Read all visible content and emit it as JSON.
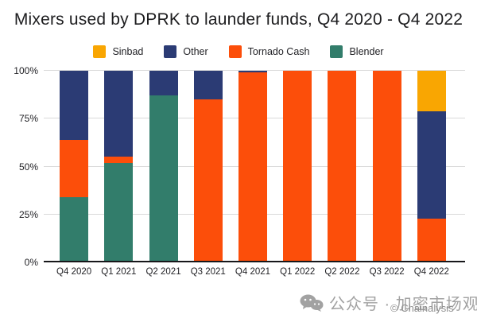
{
  "title": "Mixers used by DPRK to launder funds, Q4 2020 - Q4 2022",
  "watermark": {
    "wechat_label": "公众号 · 加密市场观察",
    "copyright": "© Chainalysis"
  },
  "colors": {
    "sinbad": "#F9A602",
    "other": "#2B3B74",
    "tornado_cash": "#FC4E0A",
    "blender": "#327D6B",
    "gridline": "#d9d9d9",
    "baseline": "#17171a",
    "watermark_gray": "#a2a2a2"
  },
  "chart_data": {
    "type": "bar",
    "subtype": "stacked_percent",
    "title": "Mixers used by DPRK to launder funds, Q4 2020 - Q4 2022",
    "legend_position": "top",
    "grid": true,
    "ylim": [
      0,
      100
    ],
    "categories": [
      "Q4 2020",
      "Q1 2021",
      "Q2 2021",
      "Q3 2021",
      "Q4 2021",
      "Q1 2022",
      "Q2 2022",
      "Q3 2022",
      "Q4 2022"
    ],
    "series": [
      {
        "name": "Sinbad",
        "color": "#F9A602",
        "values": [
          0,
          0,
          0,
          0,
          0,
          0,
          0,
          0,
          21
        ]
      },
      {
        "name": "Other",
        "color": "#2B3B74",
        "values": [
          36,
          45,
          13,
          15,
          1,
          0,
          0,
          0,
          56
        ]
      },
      {
        "name": "Tornado Cash",
        "color": "#FC4E0A",
        "values": [
          30,
          3,
          0,
          85,
          99,
          100,
          100,
          100,
          23
        ]
      },
      {
        "name": "Blender",
        "color": "#327D6B",
        "values": [
          34,
          52,
          87,
          0,
          0,
          0,
          0,
          0,
          0
        ]
      }
    ],
    "yticks": [
      {
        "label": "0%",
        "value": 0
      },
      {
        "label": "25%",
        "value": 25
      },
      {
        "label": "50%",
        "value": 50
      },
      {
        "label": "75%",
        "value": 75
      },
      {
        "label": "100%",
        "value": 100
      }
    ]
  }
}
